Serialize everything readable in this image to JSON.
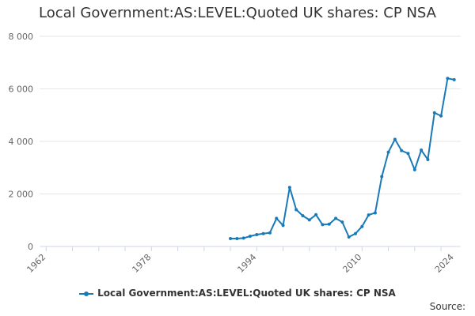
{
  "chart_data": {
    "type": "line",
    "title": "Local Government:AS:LEVEL:Quoted UK shares: CP NSA",
    "xlabel": "",
    "ylabel": "",
    "xlim": [
      1961,
      2025
    ],
    "ylim": [
      0,
      8000
    ],
    "x_ticks": [
      1962,
      1978,
      1994,
      2010,
      2024
    ],
    "y_ticks": [
      0,
      2000,
      4000,
      6000,
      8000
    ],
    "y_tick_labels": [
      "0",
      "2 000",
      "4 000",
      "6 000",
      "8 000"
    ],
    "grid": "horizontal",
    "legend_position": "bottom",
    "series": [
      {
        "name": "Local Government:AS:LEVEL:Quoted UK shares: CP NSA",
        "color": "#1a7ab8",
        "x": [
          1990,
          1991,
          1992,
          1993,
          1994,
          1995,
          1996,
          1997,
          1998,
          1999,
          2000,
          2001,
          2002,
          2003,
          2004,
          2005,
          2006,
          2007,
          2008,
          2009,
          2010,
          2011,
          2012,
          2013,
          2014,
          2015,
          2016,
          2017,
          2018,
          2019,
          2020,
          2021,
          2022,
          2023,
          2024
        ],
        "values": [
          300,
          300,
          320,
          390,
          450,
          490,
          520,
          1070,
          800,
          2250,
          1400,
          1170,
          1010,
          1210,
          830,
          850,
          1070,
          930,
          360,
          490,
          760,
          1200,
          1280,
          2660,
          3590,
          4080,
          3650,
          3540,
          2920,
          3670,
          3310,
          5090,
          4970,
          6400,
          6350
        ]
      }
    ]
  },
  "legend": {
    "label": "Local Government:AS:LEVEL:Quoted UK shares: CP NSA"
  },
  "source": {
    "label": "Source:"
  }
}
